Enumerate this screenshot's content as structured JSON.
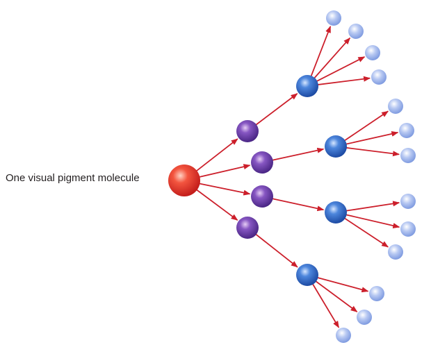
{
  "label": "One visual pigment molecule",
  "colors": {
    "arrow": "#cc1f2b",
    "source": "#e8322b",
    "level1": "#6a3aa6",
    "level2": "#2f66c4",
    "level3": "#9fb6ec"
  }
}
